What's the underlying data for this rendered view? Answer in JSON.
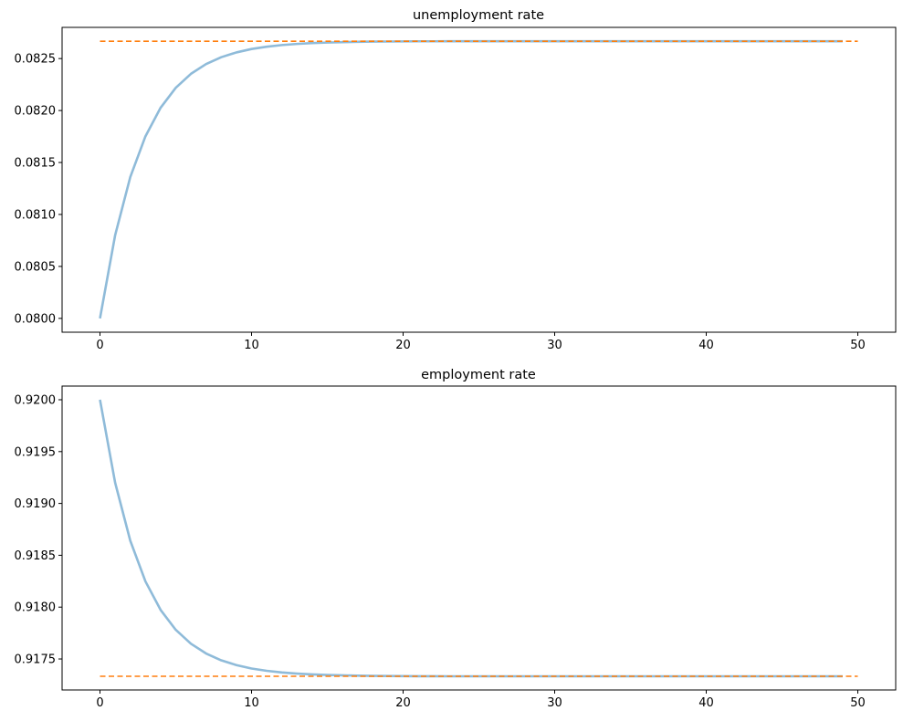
{
  "chart_data": [
    {
      "type": "line",
      "title": "unemployment rate",
      "xlim": [
        -2.5,
        52.5
      ],
      "ylim": [
        0.079867,
        0.0828
      ],
      "xticks": [
        0,
        10,
        20,
        30,
        40,
        50
      ],
      "xtick_labels": [
        "0",
        "10",
        "20",
        "30",
        "40",
        "50"
      ],
      "yticks": [
        0.08,
        0.0805,
        0.081,
        0.0815,
        0.082,
        0.0825
      ],
      "ytick_labels": [
        "0.0800",
        "0.0805",
        "0.0810",
        "0.0815",
        "0.0820",
        "0.0825"
      ],
      "grid": false,
      "series": [
        {
          "style": "solid",
          "color": "#1f77b4",
          "alpha": 0.5,
          "x_start": 0,
          "values": [
            0.08,
            0.0808,
            0.08136,
            0.081752,
            0.082027,
            0.082219,
            0.082353,
            0.082447,
            0.082513,
            0.082559,
            0.082592,
            0.082614,
            0.08263,
            0.082641,
            0.082649,
            0.082654,
            0.082658,
            0.082661,
            0.082663,
            0.082664,
            0.082665,
            0.082666,
            0.082666,
            0.082667,
            0.082667,
            0.082667,
            0.082667,
            0.082667,
            0.082667,
            0.082667,
            0.082667,
            0.082667,
            0.082667,
            0.082667,
            0.082667,
            0.082667,
            0.082667,
            0.082667,
            0.082667,
            0.082667,
            0.082667,
            0.082667,
            0.082667,
            0.082667,
            0.082667,
            0.082667,
            0.082667,
            0.082667,
            0.082667,
            0.082667
          ]
        },
        {
          "style": "dashed",
          "color": "#ff7f0e",
          "type": "hline",
          "y": 0.082667,
          "x_range": [
            0,
            50
          ]
        }
      ]
    },
    {
      "type": "line",
      "title": "employment rate",
      "xlim": [
        -2.5,
        52.5
      ],
      "ylim": [
        0.917201,
        0.920132
      ],
      "xticks": [
        0,
        10,
        20,
        30,
        40,
        50
      ],
      "xtick_labels": [
        "0",
        "10",
        "20",
        "30",
        "40",
        "50"
      ],
      "yticks": [
        0.9175,
        0.918,
        0.9185,
        0.919,
        0.9195,
        0.92
      ],
      "ytick_labels": [
        "0.9175",
        "0.9180",
        "0.9185",
        "0.9190",
        "0.9195",
        "0.9200"
      ],
      "grid": false,
      "series": [
        {
          "style": "solid",
          "color": "#1f77b4",
          "alpha": 0.5,
          "x_start": 0,
          "values": [
            0.92,
            0.9192,
            0.91864,
            0.918248,
            0.917973,
            0.917781,
            0.917647,
            0.917553,
            0.917487,
            0.917441,
            0.917408,
            0.917386,
            0.91737,
            0.917359,
            0.917351,
            0.917346,
            0.917342,
            0.917339,
            0.917337,
            0.917336,
            0.917335,
            0.917334,
            0.917334,
            0.917333,
            0.917333,
            0.917333,
            0.917333,
            0.917333,
            0.917333,
            0.917333,
            0.917333,
            0.917333,
            0.917333,
            0.917333,
            0.917333,
            0.917333,
            0.917333,
            0.917333,
            0.917333,
            0.917333,
            0.917333,
            0.917333,
            0.917333,
            0.917333,
            0.917333,
            0.917333,
            0.917333,
            0.917333,
            0.917333,
            0.917333
          ]
        },
        {
          "style": "dashed",
          "color": "#ff7f0e",
          "type": "hline",
          "y": 0.917333,
          "x_range": [
            0,
            50
          ]
        }
      ]
    }
  ]
}
